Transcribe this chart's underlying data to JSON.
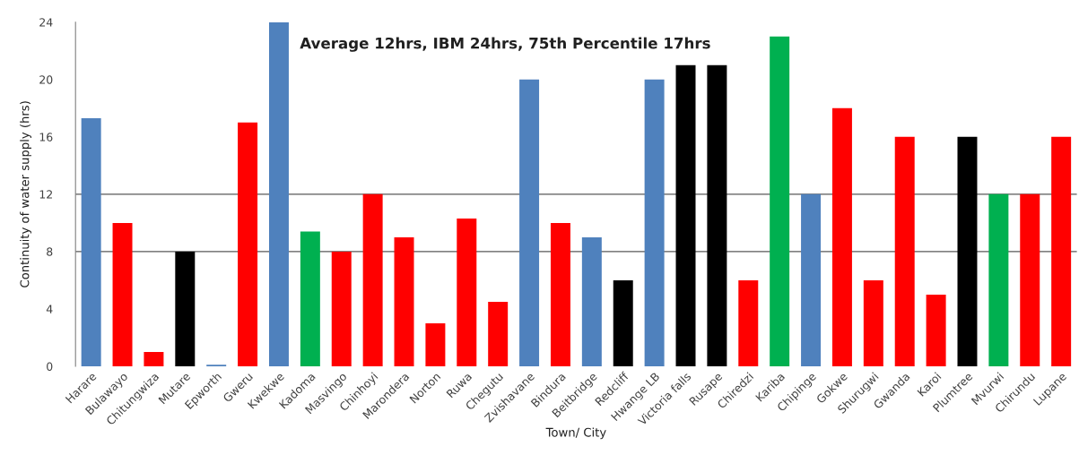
{
  "chart_data": {
    "type": "bar",
    "categories": [
      "Harare",
      "Bulawayo",
      "Chitungwiza",
      "Mutare",
      "Epworth",
      "Gweru",
      "Kwekwe",
      "Kadoma",
      "Masvingo",
      "Chinhoyi",
      "Marondera",
      "Norton",
      "Ruwa",
      "Chegutu",
      "Zvishavane",
      "Bindura",
      "Beitbridge",
      "Redcliff",
      "Hwange LB",
      "Victoria falls",
      "Rusape",
      "Chiredzi",
      "Kariba",
      "Chipinge",
      "Gokwe",
      "Shurugwi",
      "Gwanda",
      "Karoi",
      "Plumtree",
      "Mvurwi",
      "Chirundu",
      "Lupane"
    ],
    "values": [
      17.3,
      10,
      1,
      8,
      0.1,
      17,
      24,
      9.4,
      8,
      12,
      9,
      3,
      10.3,
      4.5,
      20,
      10,
      9,
      6,
      20,
      21,
      21,
      6,
      23,
      12,
      18,
      6,
      16,
      5,
      16,
      12,
      12,
      16
    ],
    "colors": [
      "#4f81bd",
      "#ff0000",
      "#ff0000",
      "#000000",
      "#4f81bd",
      "#ff0000",
      "#4f81bd",
      "#00b050",
      "#ff0000",
      "#ff0000",
      "#ff0000",
      "#ff0000",
      "#ff0000",
      "#ff0000",
      "#4f81bd",
      "#ff0000",
      "#4f81bd",
      "#000000",
      "#4f81bd",
      "#000000",
      "#000000",
      "#ff0000",
      "#00b050",
      "#4f81bd",
      "#ff0000",
      "#ff0000",
      "#ff0000",
      "#ff0000",
      "#000000",
      "#00b050",
      "#ff0000",
      "#ff0000"
    ],
    "xlabel": "Town/ City",
    "ylabel": "Continuity of water supply (hrs)",
    "ylim": [
      0,
      24
    ],
    "yticks": [
      0,
      4,
      8,
      12,
      16,
      20,
      24
    ],
    "ref_lines": [
      {
        "axis": "y",
        "value": 12,
        "color": "#595959"
      },
      {
        "axis": "y",
        "value": 8,
        "color": "#595959"
      }
    ],
    "annotations": [
      "Average 12hrs, IBM 24hrs, 75th Percentile 17hrs"
    ],
    "grid": false,
    "legend": false
  }
}
